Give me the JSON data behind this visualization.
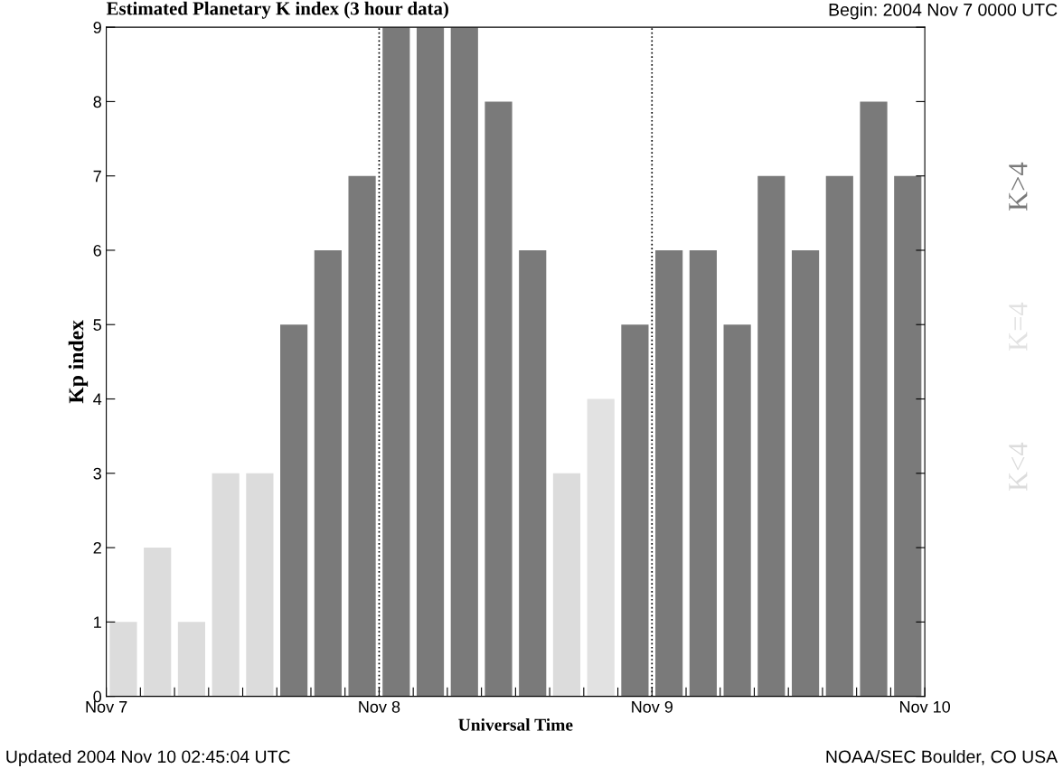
{
  "chart_data": {
    "type": "bar",
    "title": "Estimated Planetary K index (3 hour data)",
    "xlabel": "Universal Time",
    "ylabel": "Kp index",
    "x": [
      "2004-11-07T01:30",
      "2004-11-07T04:30",
      "2004-11-07T07:30",
      "2004-11-07T10:30",
      "2004-11-07T13:30",
      "2004-11-07T16:30",
      "2004-11-07T19:30",
      "2004-11-07T22:30",
      "2004-11-08T01:30",
      "2004-11-08T04:30",
      "2004-11-08T07:30",
      "2004-11-08T10:30",
      "2004-11-08T13:30",
      "2004-11-08T16:30",
      "2004-11-08T19:30",
      "2004-11-08T22:30",
      "2004-11-09T01:30",
      "2004-11-09T04:30",
      "2004-11-09T07:30",
      "2004-11-09T10:30",
      "2004-11-09T13:30",
      "2004-11-09T16:30",
      "2004-11-09T19:30",
      "2004-11-09T22:30"
    ],
    "series": [
      {
        "name": "K<4",
        "color": "#dcdcdc",
        "values": [
          1,
          2,
          1,
          3,
          3,
          null,
          null,
          null,
          null,
          null,
          null,
          null,
          null,
          3,
          null,
          null,
          null,
          null,
          null,
          null,
          null,
          null,
          null,
          null
        ]
      },
      {
        "name": "K=4",
        "color": "#e2e2e2",
        "values": [
          null,
          null,
          null,
          null,
          null,
          null,
          null,
          null,
          null,
          null,
          null,
          null,
          null,
          null,
          4,
          null,
          null,
          null,
          null,
          null,
          null,
          null,
          null,
          null
        ]
      },
      {
        "name": "K>4",
        "color": "#7a7a7a",
        "values": [
          null,
          null,
          null,
          null,
          null,
          5,
          6,
          7,
          9,
          9,
          9,
          8,
          6,
          null,
          null,
          5,
          6,
          6,
          5,
          7,
          6,
          7,
          8,
          7
        ]
      }
    ],
    "xlim": [
      "2004-11-07",
      "2004-11-10"
    ],
    "xticks": [
      {
        "value": "2004-11-07",
        "label": "Nov 7"
      },
      {
        "value": "2004-11-07T03:00",
        "label": null
      },
      {
        "value": "2004-11-07T06:00",
        "label": null
      },
      {
        "value": "2004-11-07T09:00",
        "label": null
      },
      {
        "value": "2004-11-07T12:00",
        "label": null
      },
      {
        "value": "2004-11-07T15:00",
        "label": null
      },
      {
        "value": "2004-11-07T18:00",
        "label": null
      },
      {
        "value": "2004-11-07T21:00",
        "label": null
      },
      {
        "value": "2004-11-08",
        "label": "Nov 8"
      },
      {
        "value": "2004-11-08T03:00",
        "label": null
      },
      {
        "value": "2004-11-08T06:00",
        "label": null
      },
      {
        "value": "2004-11-08T09:00",
        "label": null
      },
      {
        "value": "2004-11-08T12:00",
        "label": null
      },
      {
        "value": "2004-11-08T15:00",
        "label": null
      },
      {
        "value": "2004-11-08T18:00",
        "label": null
      },
      {
        "value": "2004-11-08T21:00",
        "label": null
      },
      {
        "value": "2004-11-09",
        "label": "Nov 9"
      },
      {
        "value": "2004-11-09T03:00",
        "label": null
      },
      {
        "value": "2004-11-09T06:00",
        "label": null
      },
      {
        "value": "2004-11-09T09:00",
        "label": null
      },
      {
        "value": "2004-11-09T12:00",
        "label": null
      },
      {
        "value": "2004-11-09T15:00",
        "label": null
      },
      {
        "value": "2004-11-09T18:00",
        "label": null
      },
      {
        "value": "2004-11-09T21:00",
        "label": null
      },
      {
        "value": "2004-11-10",
        "label": "Nov 10"
      }
    ],
    "ylim": [
      0,
      9
    ],
    "yticks": [
      0,
      1,
      2,
      3,
      4,
      5,
      6,
      7,
      8,
      9
    ],
    "ref_lines": [
      {
        "axis": "x",
        "value": "2004-11-08",
        "color": "#000000",
        "line_style": "dotted"
      },
      {
        "axis": "x",
        "value": "2004-11-09",
        "color": "#000000",
        "line_style": "dotted"
      }
    ],
    "legend": "right",
    "grid": false,
    "annotations": [
      "Begin: 2004 Nov 7 0000 UTC",
      "Updated 2004 Nov 10 02:45:04 UTC",
      "NOAA/SEC Boulder, CO USA"
    ]
  }
}
